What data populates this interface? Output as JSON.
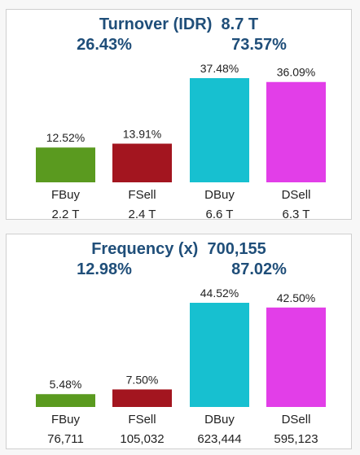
{
  "colors": {
    "FBuy": "#5a9a1f",
    "FSell": "#a3151f",
    "DBuy": "#17c0d0",
    "DSell": "#e23ee8",
    "title": "#1f4e79"
  },
  "turnover": {
    "title": "Turnover (IDR)",
    "total": "8.7 T",
    "share_left": "26.43%",
    "share_right": "73.57%"
  },
  "frequency": {
    "title": "Frequency (x)",
    "total": "700,155",
    "share_left": "12.98%",
    "share_right": "87.02%"
  },
  "chart_data": [
    {
      "type": "bar",
      "title": "Turnover (IDR) 8.7 T",
      "categories": [
        "FBuy",
        "FSell",
        "DBuy",
        "DSell"
      ],
      "values": [
        12.52,
        13.91,
        37.48,
        36.09
      ],
      "value_labels": [
        "12.52%",
        "13.91%",
        "37.48%",
        "36.09%"
      ],
      "sub_labels": [
        "2.2 T",
        "2.4 T",
        "6.6 T",
        "6.3 T"
      ],
      "ylim": [
        0,
        37.48
      ]
    },
    {
      "type": "bar",
      "title": "Frequency (x) 700,155",
      "categories": [
        "FBuy",
        "FSell",
        "DBuy",
        "DSell"
      ],
      "values": [
        5.48,
        7.5,
        44.52,
        42.5
      ],
      "value_labels": [
        "5.48%",
        "7.50%",
        "44.52%",
        "42.50%"
      ],
      "sub_labels": [
        "76,711",
        "105,032",
        "623,444",
        "595,123"
      ],
      "ylim": [
        0,
        44.52
      ]
    }
  ]
}
